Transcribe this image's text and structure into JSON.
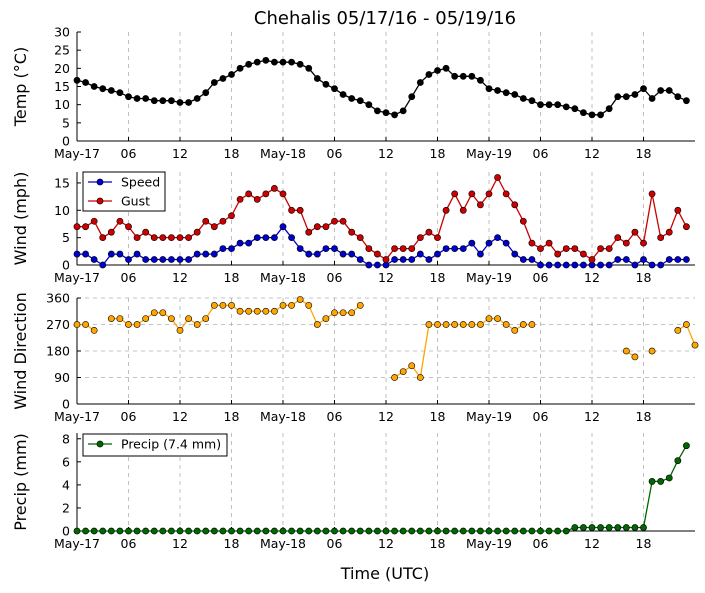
{
  "title": "Chehalis 05/17/16 - 05/19/16",
  "xlabel": "Time (UTC)",
  "x_tick_labels": [
    "May-17",
    "06",
    "12",
    "18",
    "May-18",
    "06",
    "12",
    "18",
    "May-19",
    "06",
    "12",
    "18"
  ],
  "chart_data": [
    {
      "type": "line",
      "ylabel": "Temp (°C)",
      "ylim": [
        0,
        30
      ],
      "yticks": [
        0,
        5,
        10,
        15,
        20,
        25,
        30
      ],
      "grid": "vertical",
      "x_hours": "hours since May-17 00:00 UTC",
      "legend": null,
      "series": [
        {
          "color": "#000000",
          "x": [
            0,
            1,
            2,
            3,
            4,
            5,
            6,
            7,
            8,
            9,
            10,
            11,
            12,
            13,
            14,
            15,
            16,
            17,
            18,
            19,
            20,
            21,
            22,
            23,
            24,
            25,
            26,
            27,
            28,
            29,
            30,
            31,
            32,
            33,
            34,
            35,
            36,
            37,
            38,
            39,
            40,
            41,
            42,
            43,
            44,
            45,
            46,
            47,
            48,
            49,
            50,
            51,
            52,
            53,
            54,
            55,
            56,
            57,
            58,
            59,
            60,
            61,
            62,
            63,
            64,
            65,
            66,
            67,
            68,
            69,
            70,
            71
          ],
          "values": [
            16.7,
            16.1,
            15.0,
            14.4,
            13.9,
            13.3,
            12.2,
            11.7,
            11.7,
            11.1,
            11.1,
            11.1,
            10.6,
            10.6,
            11.7,
            13.3,
            16.1,
            17.2,
            18.3,
            20.0,
            21.1,
            21.7,
            22.2,
            21.7,
            21.7,
            21.7,
            21.1,
            20.0,
            17.2,
            15.6,
            14.4,
            12.8,
            11.7,
            11.1,
            10.0,
            8.3,
            7.8,
            7.2,
            8.3,
            12.2,
            16.1,
            18.3,
            19.4,
            20.0,
            17.8,
            17.8,
            17.8,
            16.7,
            14.4,
            13.9,
            13.3,
            12.8,
            11.7,
            11.1,
            10.0,
            10.0,
            10.0,
            9.4,
            8.9,
            7.8,
            7.2,
            7.2,
            8.9,
            12.2,
            12.2,
            12.8,
            14.4,
            11.7,
            13.9,
            13.9,
            12.2,
            11.1
          ]
        }
      ]
    },
    {
      "type": "line",
      "ylabel": "Wind (mph)",
      "ylim": [
        0,
        17
      ],
      "yticks": [
        0,
        5,
        10,
        15
      ],
      "grid": "vertical",
      "legend": "top-left",
      "series": [
        {
          "name": "Speed",
          "color": "#0000cc",
          "x": [
            0,
            1,
            2,
            3,
            4,
            5,
            6,
            7,
            8,
            9,
            10,
            11,
            12,
            13,
            14,
            15,
            16,
            17,
            18,
            19,
            20,
            21,
            22,
            23,
            24,
            25,
            26,
            27,
            28,
            29,
            30,
            31,
            32,
            33,
            34,
            35,
            36,
            37,
            38,
            39,
            40,
            41,
            42,
            43,
            44,
            45,
            46,
            47,
            48,
            49,
            50,
            51,
            52,
            53,
            54,
            55,
            56,
            57,
            58,
            59,
            60,
            61,
            62,
            63,
            64,
            65,
            66,
            67,
            68,
            69,
            70,
            71
          ],
          "values": [
            2,
            2,
            1,
            0,
            2,
            2,
            1,
            2,
            1,
            1,
            1,
            1,
            1,
            1,
            2,
            2,
            2,
            3,
            3,
            4,
            4,
            5,
            5,
            5,
            7,
            5,
            3,
            2,
            2,
            3,
            3,
            2,
            2,
            1,
            0,
            0,
            0,
            1,
            1,
            1,
            2,
            1,
            2,
            3,
            3,
            3,
            4,
            2,
            4,
            5,
            4,
            2,
            1,
            1,
            0,
            0,
            0,
            0,
            0,
            0,
            0,
            0,
            0,
            1,
            1,
            0,
            1,
            0,
            0,
            1,
            1,
            1
          ]
        },
        {
          "name": "Gust",
          "color": "#cc0000",
          "x": [
            0,
            1,
            2,
            3,
            4,
            5,
            6,
            7,
            8,
            9,
            10,
            11,
            12,
            13,
            14,
            15,
            16,
            17,
            18,
            19,
            20,
            21,
            22,
            23,
            24,
            25,
            26,
            27,
            28,
            29,
            30,
            31,
            32,
            33,
            34,
            35,
            36,
            37,
            38,
            39,
            40,
            41,
            42,
            43,
            44,
            45,
            46,
            47,
            48,
            49,
            50,
            51,
            52,
            53,
            54,
            55,
            56,
            57,
            58,
            59,
            60,
            61,
            62,
            63,
            64,
            65,
            66,
            67,
            68,
            69,
            70,
            71
          ],
          "values": [
            7,
            7,
            8,
            5,
            6,
            8,
            7,
            5,
            6,
            5,
            5,
            5,
            5,
            5,
            6,
            8,
            7,
            8,
            9,
            12,
            13,
            12,
            13,
            14,
            13,
            10,
            10,
            6,
            7,
            7,
            8,
            8,
            6,
            5,
            3,
            2,
            1,
            3,
            3,
            3,
            5,
            6,
            5,
            10,
            13,
            10,
            13,
            11,
            13,
            16,
            13,
            11,
            8,
            4,
            3,
            4,
            2,
            3,
            3,
            2,
            1,
            3,
            3,
            5,
            4,
            6,
            4,
            13,
            5,
            6,
            10,
            7
          ]
        }
      ]
    },
    {
      "type": "scatter",
      "ylabel": "Wind Direction",
      "ylim": [
        0,
        360
      ],
      "yticks": [
        0,
        90,
        180,
        270,
        360
      ],
      "grid": "vertical-and-horizontal",
      "legend": null,
      "series": [
        {
          "color": "#ffa500",
          "x": [
            0,
            1,
            2,
            4,
            5,
            6,
            7,
            8,
            9,
            10,
            11,
            12,
            13,
            14,
            15,
            16,
            17,
            18,
            19,
            20,
            21,
            22,
            23,
            24,
            25,
            26,
            27,
            28,
            29,
            30,
            31,
            32,
            33,
            37,
            38,
            39,
            40,
            41,
            42,
            43,
            44,
            45,
            46,
            47,
            48,
            49,
            50,
            51,
            52,
            53,
            64,
            65,
            67,
            70,
            71,
            72
          ],
          "values": [
            270,
            270,
            250,
            290,
            290,
            270,
            270,
            290,
            310,
            310,
            290,
            250,
            290,
            270,
            290,
            335,
            335,
            335,
            315,
            315,
            315,
            315,
            315,
            335,
            335,
            355,
            335,
            270,
            290,
            310,
            310,
            310,
            335,
            90,
            110,
            130,
            90,
            270,
            270,
            270,
            270,
            270,
            270,
            270,
            290,
            290,
            270,
            250,
            270,
            270,
            180,
            160,
            180,
            250,
            270,
            200
          ]
        }
      ]
    },
    {
      "type": "area",
      "ylabel": "Precip (mm)",
      "ylim": [
        0,
        8.5
      ],
      "yticks": [
        0,
        2,
        4,
        6,
        8
      ],
      "grid": "vertical",
      "legend": "top-left",
      "series": [
        {
          "name": "Precip (7.4 mm)",
          "color": "#006600",
          "x": [
            0,
            1,
            2,
            3,
            4,
            5,
            6,
            7,
            8,
            9,
            10,
            11,
            12,
            13,
            14,
            15,
            16,
            17,
            18,
            19,
            20,
            21,
            22,
            23,
            24,
            25,
            26,
            27,
            28,
            29,
            30,
            31,
            32,
            33,
            34,
            35,
            36,
            37,
            38,
            39,
            40,
            41,
            42,
            43,
            44,
            45,
            46,
            47,
            48,
            49,
            50,
            51,
            52,
            53,
            54,
            55,
            56,
            57,
            58,
            59,
            60,
            61,
            62,
            63,
            64,
            65,
            66,
            67,
            68,
            69,
            70,
            71
          ],
          "values": [
            0,
            0,
            0,
            0,
            0,
            0,
            0,
            0,
            0,
            0,
            0,
            0,
            0,
            0,
            0,
            0,
            0,
            0,
            0,
            0,
            0,
            0,
            0,
            0,
            0,
            0,
            0,
            0,
            0,
            0,
            0,
            0,
            0,
            0,
            0,
            0,
            0,
            0,
            0,
            0,
            0,
            0,
            0,
            0,
            0,
            0,
            0,
            0,
            0,
            0,
            0,
            0,
            0,
            0,
            0,
            0,
            0,
            0,
            0.3,
            0.3,
            0.3,
            0.3,
            0.3,
            0.3,
            0.3,
            0.3,
            0.3,
            4.3,
            4.3,
            4.6,
            6.1,
            7.4
          ]
        }
      ]
    }
  ]
}
